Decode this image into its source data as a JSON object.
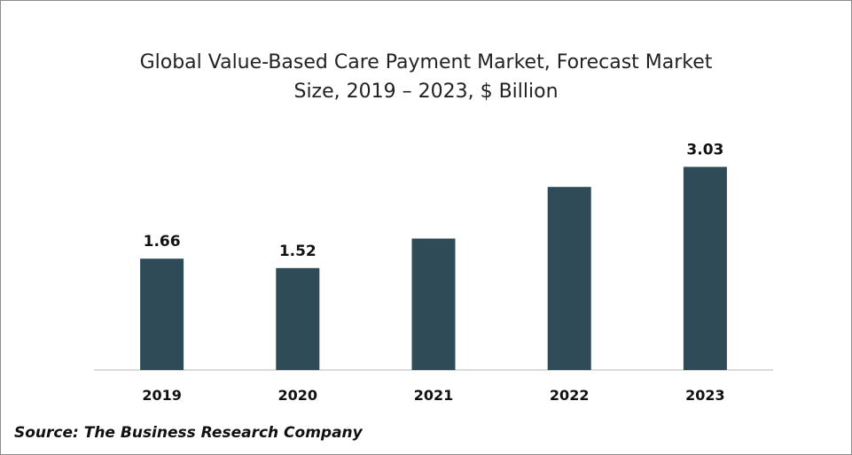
{
  "chart_data": {
    "type": "bar",
    "title": "Global Value-Based Care Payment Market, Forecast Market Size, 2019 – 2023, $ Billion",
    "title_lines": [
      "Global Value-Based Care Payment Market, Forecast Market",
      "Size, 2019 – 2023, $ Billion"
    ],
    "categories": [
      "2019",
      "2020",
      "2021",
      "2022",
      "2023"
    ],
    "values": [
      1.66,
      1.52,
      1.96,
      2.73,
      3.03
    ],
    "data_labels": [
      "1.66",
      "1.52",
      "",
      "",
      "3.03"
    ],
    "xlabel": "",
    "ylabel": "",
    "ylim": [
      0,
      3.3
    ],
    "grid": false,
    "legend": "none",
    "bar_color": "#2f4b57"
  },
  "source": "Source: The Business Research Company"
}
